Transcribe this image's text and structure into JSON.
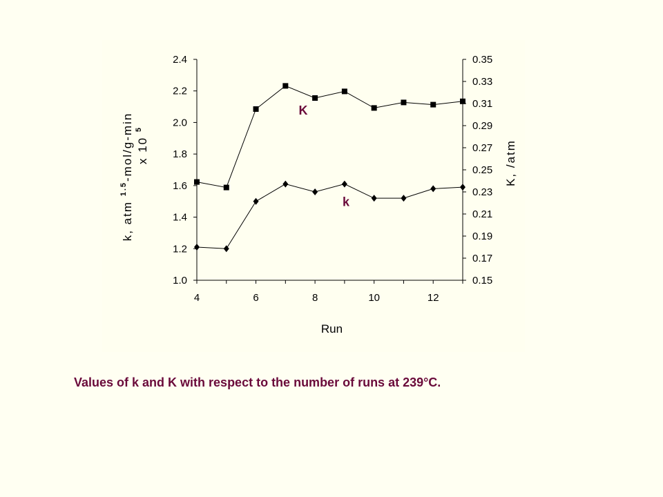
{
  "chart_data": {
    "type": "line",
    "xlabel": "Run",
    "ylabel_left": "k, atm 1.5-mol/g-min x 10 5",
    "ylabel_left_parts": {
      "main": "k, atm",
      "exp1": "1.5",
      "mid": "-mol/g-min",
      "line2": "x 10",
      "exp2": "5"
    },
    "ylabel_right": "K, /atm",
    "xlim": [
      4,
      13
    ],
    "x_ticks": [
      "4",
      "6",
      "8",
      "10",
      "12"
    ],
    "ylim_left": [
      1.0,
      2.4
    ],
    "y_ticks_left": [
      "1.0",
      "1.2",
      "1.4",
      "1.6",
      "1.8",
      "2.0",
      "2.2",
      "2.4"
    ],
    "ylim_right": [
      0.15,
      0.35
    ],
    "y_ticks_right": [
      "0.15",
      "0.17",
      "0.19",
      "0.21",
      "0.23",
      "0.25",
      "0.27",
      "0.29",
      "0.31",
      "0.33",
      "0.35"
    ],
    "grid": false,
    "series": [
      {
        "name": "K",
        "axis": "right",
        "marker": "square",
        "x": [
          4,
          5,
          6,
          7,
          8,
          9,
          10,
          11,
          12,
          13
        ],
        "values": [
          0.239,
          0.234,
          0.305,
          0.326,
          0.315,
          0.321,
          0.306,
          0.311,
          0.309,
          0.312
        ]
      },
      {
        "name": "k",
        "axis": "left",
        "marker": "diamond",
        "x": [
          4,
          5,
          6,
          7,
          8,
          9,
          10,
          11,
          12,
          13
        ],
        "values": [
          1.21,
          1.2,
          1.5,
          1.61,
          1.56,
          1.61,
          1.52,
          1.52,
          1.58,
          1.59
        ]
      }
    ]
  },
  "colors": {
    "series_label": "#6a0a3a",
    "caption": "#6a0a3a",
    "page_bg": "#fffff2"
  },
  "caption": "Values of k and K with respect to the number of runs at 239°C."
}
